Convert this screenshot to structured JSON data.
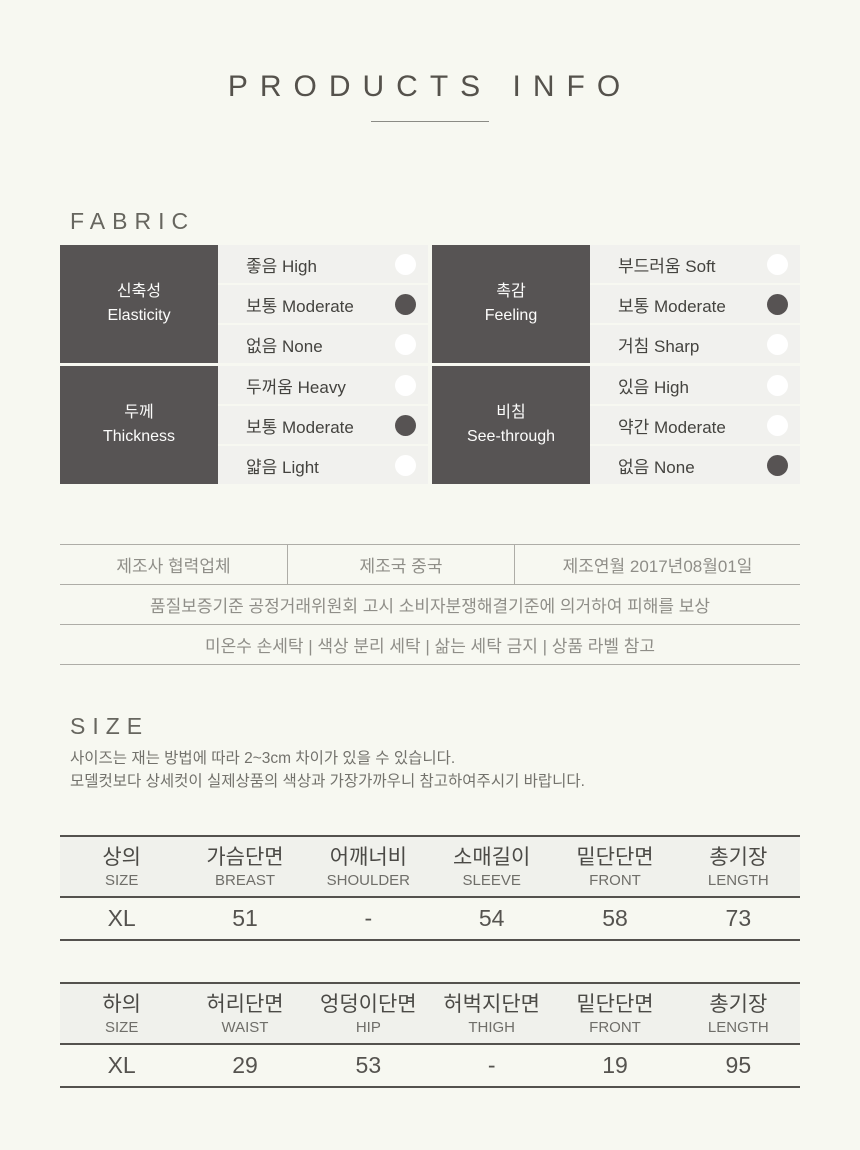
{
  "header": {
    "title": "PRODUCTS INFO"
  },
  "theme": {
    "page_bg": "#f7f8f1",
    "dark_cell_bg": "#575454",
    "option_row_bg": "#f1f1ee",
    "selected_dot": "#575353",
    "unselected_dot": "#ffffff",
    "table_border_dark": "#54524e",
    "table_border_light": "#aeada7"
  },
  "fabric": {
    "heading": "FABRIC",
    "groups": [
      {
        "label_ko": "신축성",
        "label_en": "Elasticity",
        "options": [
          {
            "label": "좋음 High",
            "selected": false
          },
          {
            "label": "보통 Moderate",
            "selected": true
          },
          {
            "label": "없음 None",
            "selected": false
          }
        ]
      },
      {
        "label_ko": "촉감",
        "label_en": "Feeling",
        "options": [
          {
            "label": "부드러움 Soft",
            "selected": false
          },
          {
            "label": "보통 Moderate",
            "selected": true
          },
          {
            "label": "거침 Sharp",
            "selected": false
          }
        ]
      },
      {
        "label_ko": "두께",
        "label_en": "Thickness",
        "options": [
          {
            "label": "두꺼움 Heavy",
            "selected": false
          },
          {
            "label": "보통 Moderate",
            "selected": true
          },
          {
            "label": "얇음 Light",
            "selected": false
          }
        ]
      },
      {
        "label_ko": "비침",
        "label_en": "See-through",
        "options": [
          {
            "label": "있음 High",
            "selected": false
          },
          {
            "label": "약간 Moderate",
            "selected": false
          },
          {
            "label": "없음 None",
            "selected": true
          }
        ]
      }
    ]
  },
  "manufacture": {
    "row1": [
      "제조사  협력업체",
      "제조국  중국",
      "제조연월  2017년08월01일"
    ],
    "row2": "품질보증기준  공정거래위원회 고시 소비자분쟁해결기준에 의거하여 피해를 보상",
    "row3": "미온수 손세탁 | 색상 분리 세탁 | 삶는 세탁 금지 | 상품 라벨 참고"
  },
  "size": {
    "heading": "SIZE",
    "notes": [
      "사이즈는 재는 방법에 따라 2~3cm 차이가 있을 수 있습니다.",
      "모델컷보다 상세컷이 실제상품의 색상과 가장가까우니 참고하여주시기 바랍니다."
    ],
    "tables": [
      {
        "headers": [
          {
            "ko": "상의",
            "en": "SIZE"
          },
          {
            "ko": "가슴단면",
            "en": "BREAST"
          },
          {
            "ko": "어깨너비",
            "en": "SHOULDER"
          },
          {
            "ko": "소매길이",
            "en": "SLEEVE"
          },
          {
            "ko": "밑단단면",
            "en": "FRONT"
          },
          {
            "ko": "총기장",
            "en": "LENGTH"
          }
        ],
        "rows": [
          [
            "XL",
            "51",
            "-",
            "54",
            "58",
            "73"
          ]
        ]
      },
      {
        "headers": [
          {
            "ko": "하의",
            "en": "SIZE"
          },
          {
            "ko": "허리단면",
            "en": "WAIST"
          },
          {
            "ko": "엉덩이단면",
            "en": "HIP"
          },
          {
            "ko": "허벅지단면",
            "en": "THIGH"
          },
          {
            "ko": "밑단단면",
            "en": "FRONT"
          },
          {
            "ko": "총기장",
            "en": "LENGTH"
          }
        ],
        "rows": [
          [
            "XL",
            "29",
            "53",
            "-",
            "19",
            "95"
          ]
        ]
      }
    ]
  }
}
